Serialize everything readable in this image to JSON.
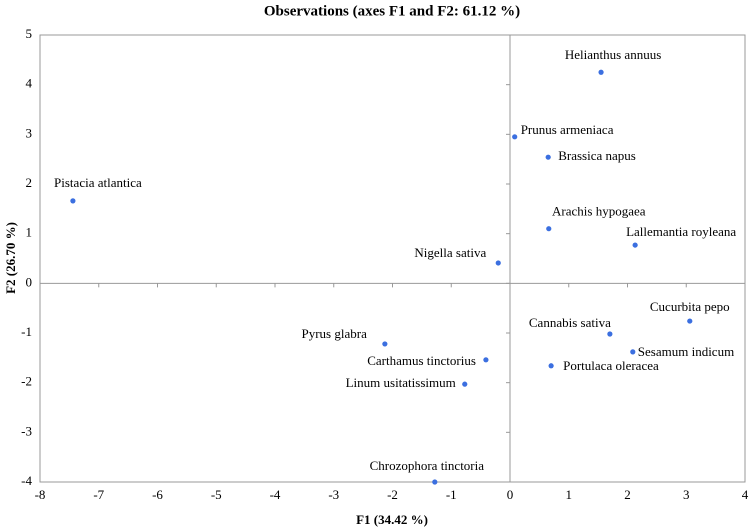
{
  "chart_data": {
    "type": "scatter",
    "title": "Observations (axes F1 and F2: 61.12 %)",
    "x_label": "F1 (34.42 %)",
    "y_label": "F2 (26.70 %)",
    "labels": [
      "Helianthus annuus",
      "Prunus armeniaca",
      "Brassica napus",
      "Pistacia atlantica",
      "Arachis hypogaea",
      "Lallemantia royleana",
      "Nigella sativa",
      "Cucurbita pepo",
      "Cannabis sativa",
      "Pyrus glabra",
      "Sesamum indicum",
      "Carthamus tinctorius",
      "Portulaca oleracea",
      "Linum usitatissimum",
      "Chrozophora tinctoria"
    ],
    "x": [
      1.55,
      0.08,
      0.65,
      -7.44,
      0.66,
      2.13,
      -0.2,
      3.06,
      1.7,
      -2.13,
      2.09,
      -0.41,
      0.7,
      -0.77,
      -1.28
    ],
    "y": [
      4.25,
      2.95,
      2.54,
      1.66,
      1.1,
      0.77,
      0.41,
      -0.76,
      -1.02,
      -1.22,
      -1.38,
      -1.54,
      -1.66,
      -2.03,
      -4.0
    ],
    "color": "#3b6fe0",
    "xlim": [
      -8,
      4
    ],
    "xticks": [
      -8,
      -7,
      -6,
      -5,
      -4,
      -3,
      -2,
      -1,
      0,
      1,
      2,
      3,
      4
    ],
    "ylim": [
      -4,
      5
    ],
    "yticks": [
      -4,
      -3,
      -2,
      -1,
      0,
      1,
      2,
      3,
      4,
      5
    ]
  }
}
